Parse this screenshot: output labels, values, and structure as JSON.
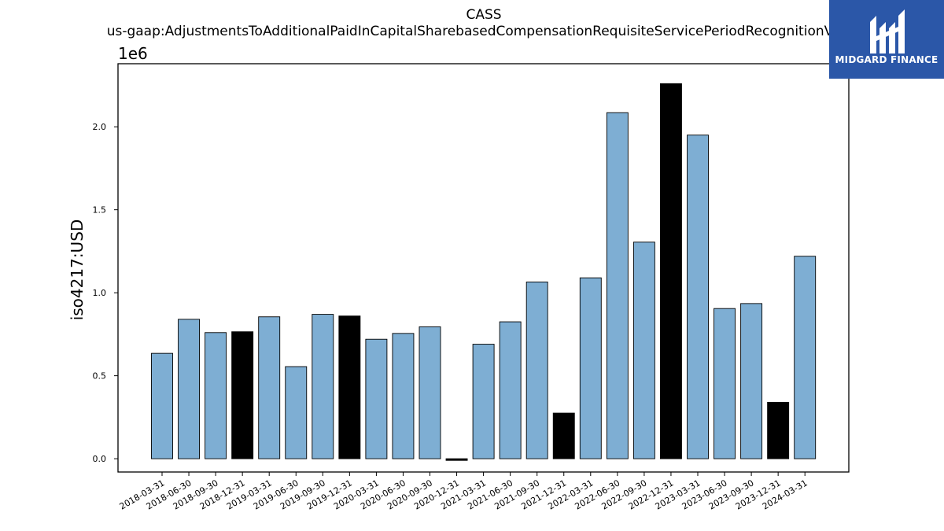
{
  "logo": {
    "text": "MIDGARD FINANCE",
    "icon": "midgard-logo-icon",
    "background": "#2b57a8"
  },
  "chart_data": {
    "type": "bar",
    "title": "CASS",
    "subtitle": "us-gaap:AdjustmentsToAdditionalPaidInCapitalSharebasedCompensationRequisiteServicePeriodRecognitionValue",
    "xlabel": "",
    "ylabel": "iso4217:USD",
    "y_offset_label": "1e6",
    "ylim": [
      -0.08,
      2.38
    ],
    "yticks": [
      0.0,
      0.5,
      1.0,
      1.5,
      2.0
    ],
    "ytick_labels": [
      "0.0",
      "0.5",
      "1.0",
      "1.5",
      "2.0"
    ],
    "grid": false,
    "legend": "none",
    "colors": {
      "default": "#7eaed3",
      "highlight": "#000000",
      "edge": "#000000"
    },
    "categories": [
      "2018-03-31",
      "2018-06-30",
      "2018-09-30",
      "2018-12-31",
      "2019-03-31",
      "2019-06-30",
      "2019-09-30",
      "2019-12-31",
      "2020-03-31",
      "2020-06-30",
      "2020-09-30",
      "2020-12-31",
      "2021-03-31",
      "2021-06-30",
      "2021-09-30",
      "2021-12-31",
      "2022-03-31",
      "2022-06-30",
      "2022-09-30",
      "2022-12-31",
      "2023-03-31",
      "2023-06-30",
      "2023-09-30",
      "2023-12-31",
      "2024-03-31"
    ],
    "values": [
      0.635,
      0.84,
      0.76,
      0.765,
      0.855,
      0.555,
      0.87,
      0.86,
      0.72,
      0.755,
      0.795,
      -0.01,
      0.69,
      0.825,
      1.065,
      0.275,
      1.09,
      2.085,
      1.305,
      2.26,
      1.95,
      0.905,
      0.935,
      0.34,
      1.22
    ],
    "highlight": [
      false,
      false,
      false,
      true,
      false,
      false,
      false,
      true,
      false,
      false,
      false,
      true,
      false,
      false,
      false,
      true,
      false,
      false,
      false,
      true,
      false,
      false,
      false,
      true,
      false
    ]
  }
}
